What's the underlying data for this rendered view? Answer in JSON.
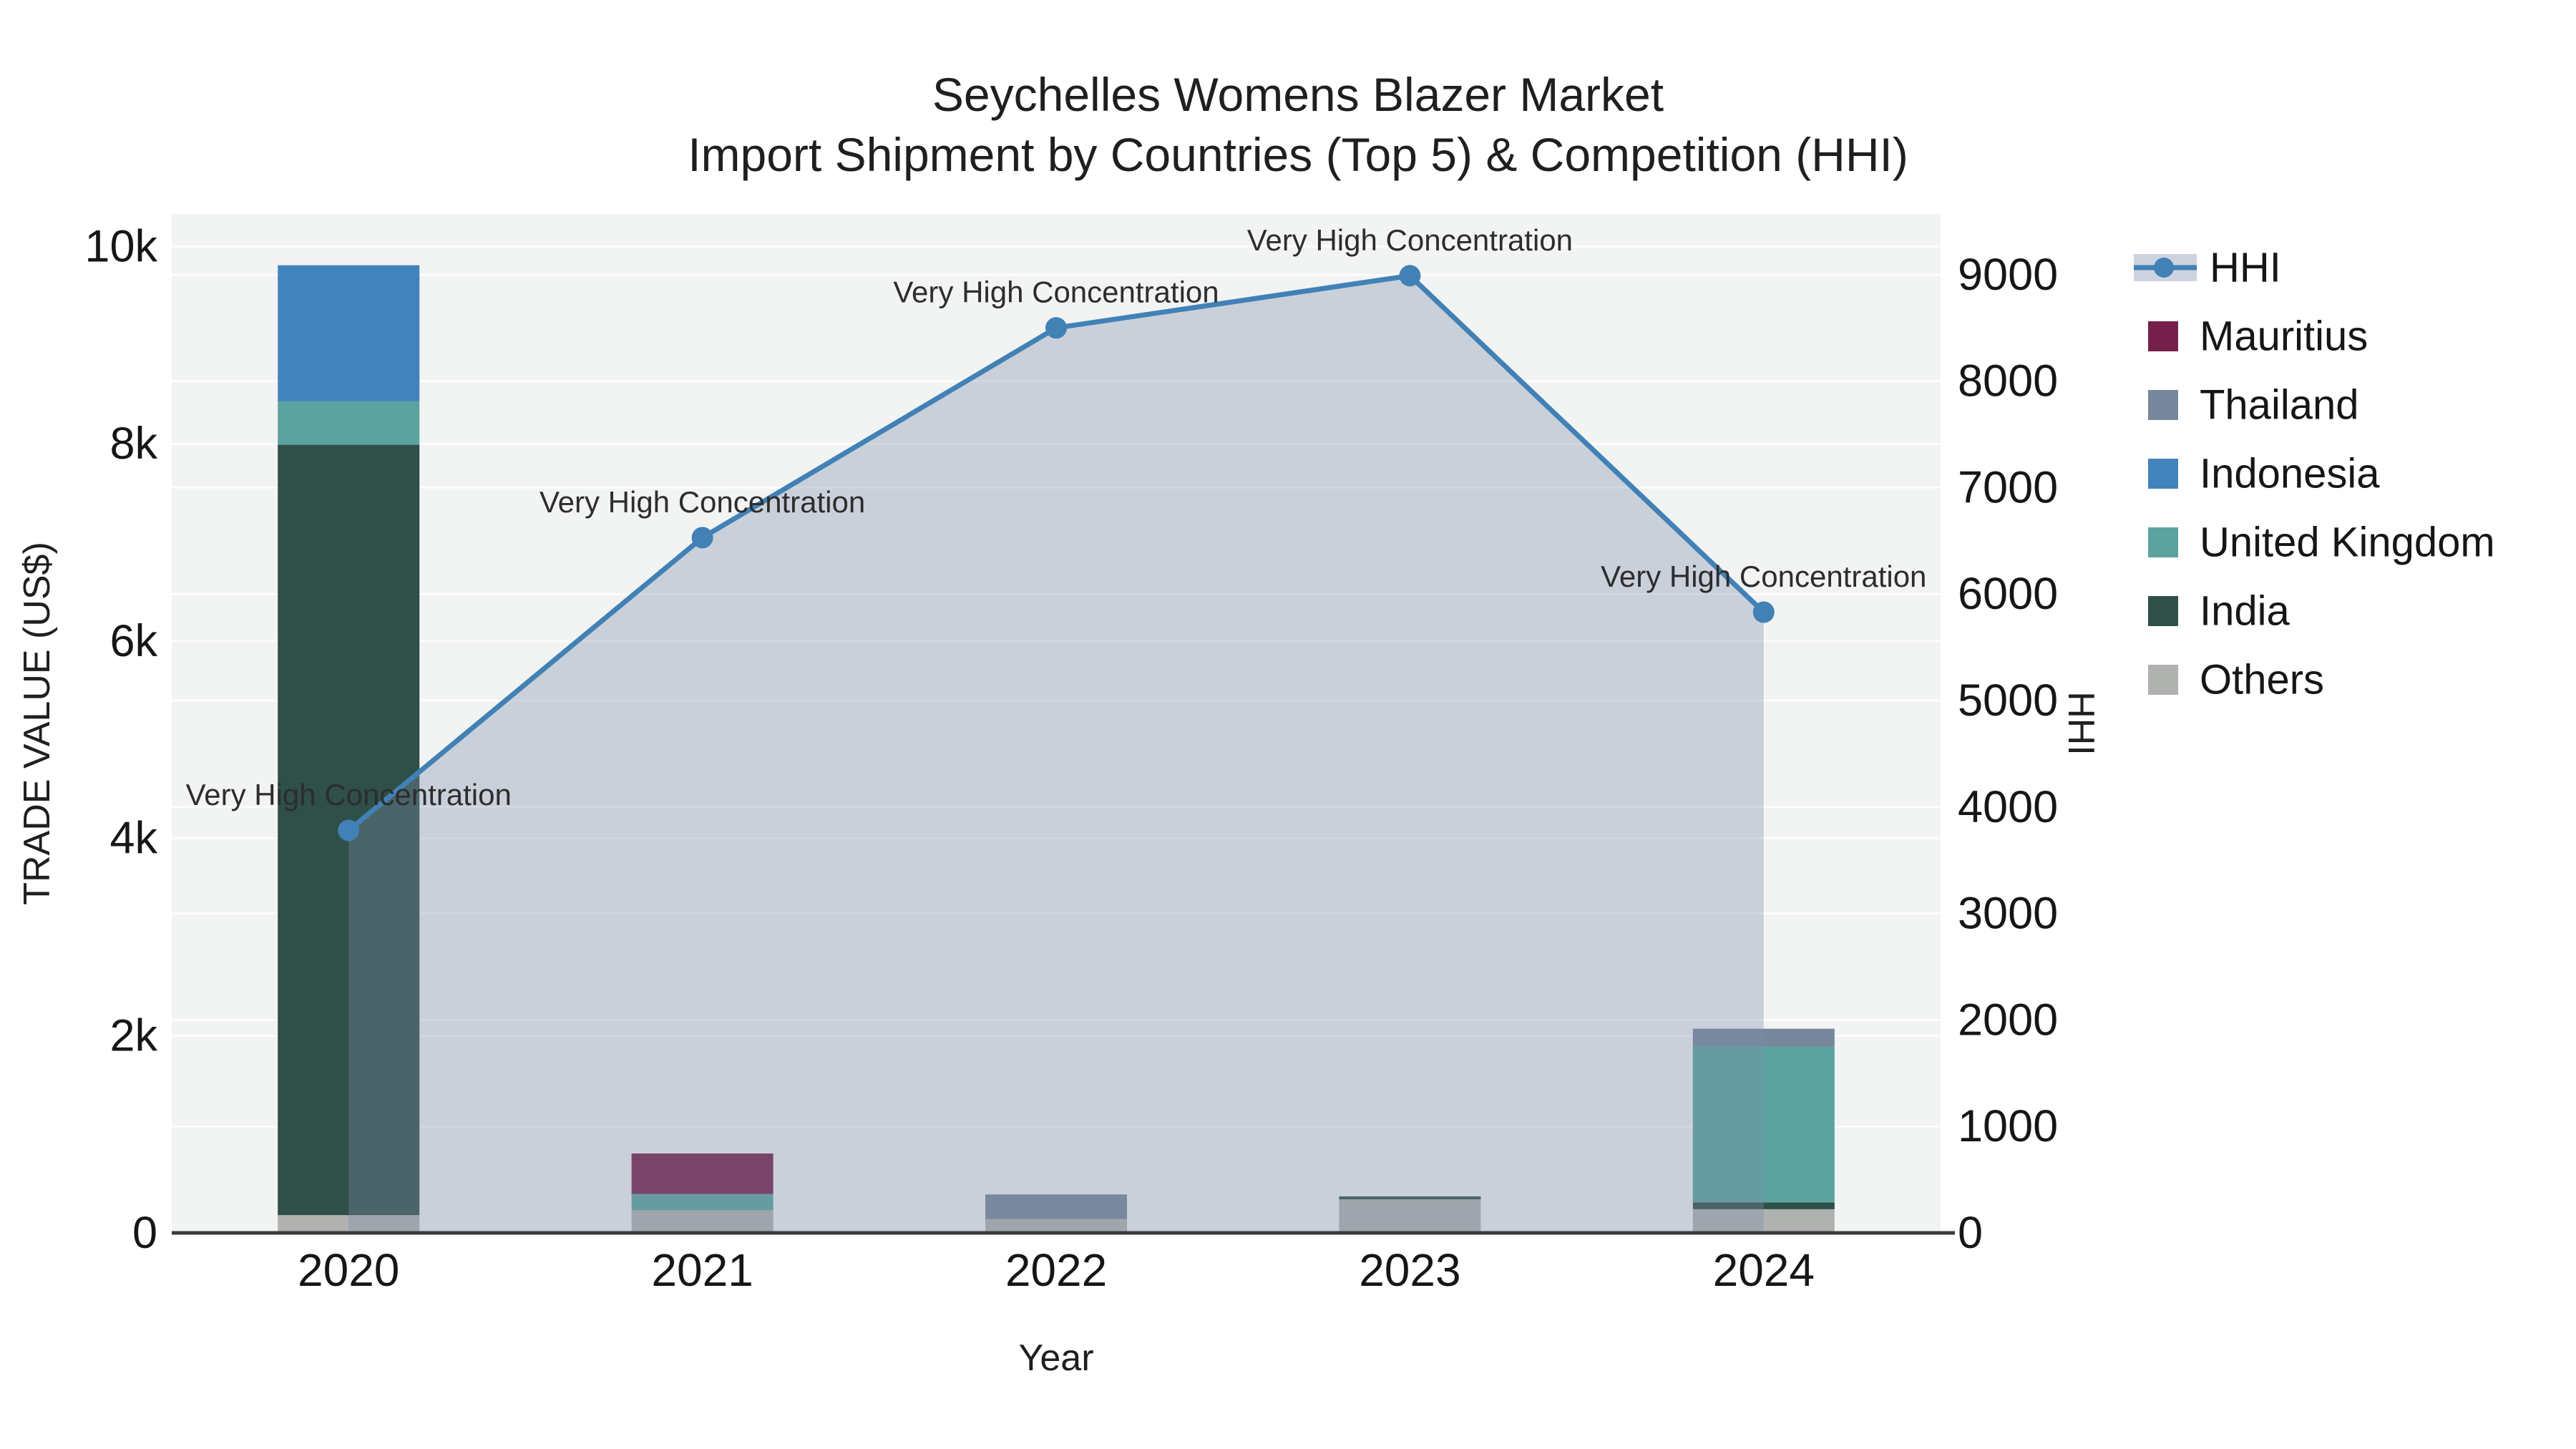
{
  "title": {
    "line1": "Seychelles Womens Blazer Market",
    "line2": "Import Shipment by Countries (Top 5) & Competition (HHI)"
  },
  "chart_data": {
    "type": "bar",
    "subtype": "stacked-bar-with-line-area-overlay-dual-axis",
    "title": "Seychelles Womens Blazer Market — Import Shipment by Countries (Top 5) & Competition (HHI)",
    "categories": [
      "2020",
      "2021",
      "2022",
      "2023",
      "2024"
    ],
    "bar_series": [
      {
        "name": "Mauritius",
        "color": "#75204a",
        "values": [
          0,
          410,
          0,
          0,
          0
        ]
      },
      {
        "name": "Thailand",
        "color": "#76879b",
        "values": [
          0,
          0,
          250,
          0,
          180
        ]
      },
      {
        "name": "Indonesia",
        "color": "#4383bc",
        "values": [
          1380,
          0,
          0,
          0,
          0
        ]
      },
      {
        "name": "United Kingdom",
        "color": "#5ca3a0",
        "values": [
          440,
          165,
          0,
          0,
          1580
        ]
      },
      {
        "name": "India",
        "color": "#2f4f49",
        "values": [
          7810,
          0,
          0,
          30,
          70
        ]
      },
      {
        "name": "Others",
        "color": "#b0b2af",
        "values": [
          180,
          230,
          140,
          340,
          240
        ]
      }
    ],
    "stack_order_bottom_to_top": [
      "Others",
      "India",
      "United Kingdom",
      "Indonesia",
      "Thailand",
      "Mauritius"
    ],
    "line_series": {
      "name": "HHI",
      "color": "#4181b6",
      "area_fill_color": "rgba(125,140,168,0.34)",
      "values": [
        3780,
        6530,
        8500,
        8990,
        5830
      ]
    },
    "annotations": [
      "Very High Concentration",
      "Very High Concentration",
      "Very High Concentration",
      "Very High Concentration",
      "Very High Concentration"
    ],
    "x_axis": {
      "title": "Year"
    },
    "left_axis": {
      "title": "TRADE VALUE (US$)",
      "tick_labels": [
        "0",
        "2k",
        "4k",
        "6k",
        "8k",
        "10k"
      ],
      "tick_values": [
        0,
        2000,
        4000,
        6000,
        8000,
        10000
      ],
      "range": [
        0,
        10330
      ],
      "grid": true
    },
    "right_axis": {
      "title": "HHI",
      "tick_labels": [
        "0",
        "1000",
        "2000",
        "3000",
        "4000",
        "5000",
        "6000",
        "7000",
        "8000",
        "9000"
      ],
      "tick_values": [
        0,
        1000,
        2000,
        3000,
        4000,
        5000,
        6000,
        7000,
        8000,
        9000
      ],
      "range": [
        0,
        9570
      ],
      "grid": true
    },
    "plot_background_color": "#f2f3f3",
    "grid_color": "#ffffff",
    "axis_line_color": "#3c3c3c",
    "legend_position": "top-right"
  },
  "legend": {
    "items": [
      {
        "label": "HHI",
        "type": "line",
        "color": "#4181b6",
        "band_color": "#cdd3de"
      },
      {
        "label": "Mauritius",
        "type": "square",
        "color": "#75204a"
      },
      {
        "label": "Thailand",
        "type": "square",
        "color": "#76879b"
      },
      {
        "label": "Indonesia",
        "type": "square",
        "color": "#4383bc"
      },
      {
        "label": "United Kingdom",
        "type": "square",
        "color": "#5ca3a0"
      },
      {
        "label": "India",
        "type": "square",
        "color": "#2f4f49"
      },
      {
        "label": "Others",
        "type": "square",
        "color": "#b0b2af"
      }
    ]
  }
}
